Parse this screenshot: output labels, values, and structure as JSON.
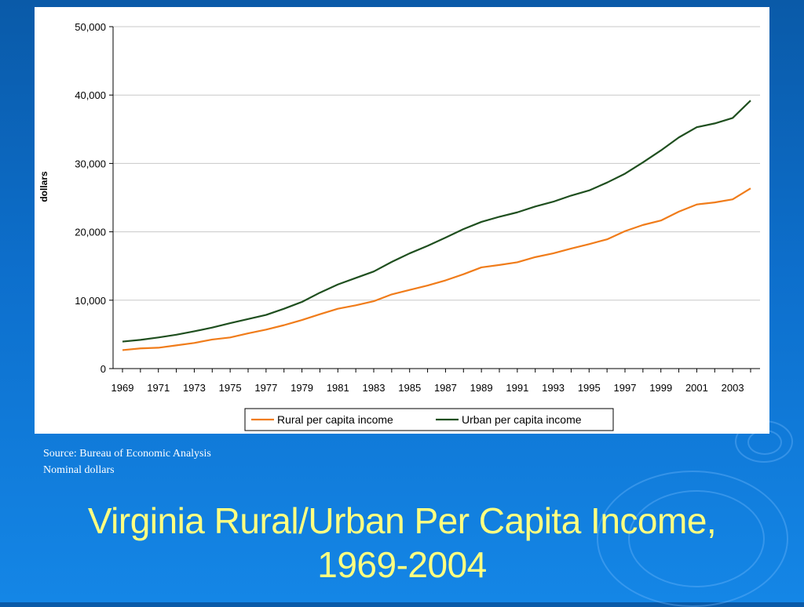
{
  "slide": {
    "title_line1": "Virginia Rural/Urban Per Capita Income,",
    "title_line2": "1969-2004",
    "source_line": "Source:  Bureau of Economic Analysis",
    "note_line": "Nominal dollars"
  },
  "colors": {
    "rural": "#f07c1a",
    "urban": "#1f4f1f",
    "title": "#ffff80",
    "background": "#0d6fcc"
  },
  "chart_data": {
    "type": "line",
    "title": "",
    "xlabel": "",
    "ylabel": "dollars",
    "x": [
      1969,
      1970,
      1971,
      1972,
      1973,
      1974,
      1975,
      1976,
      1977,
      1978,
      1979,
      1980,
      1981,
      1982,
      1983,
      1984,
      1985,
      1986,
      1987,
      1988,
      1989,
      1990,
      1991,
      1992,
      1993,
      1994,
      1995,
      1996,
      1997,
      1998,
      1999,
      2000,
      2001,
      2002,
      2003,
      2004
    ],
    "x_tick_labels": [
      "1969",
      "1971",
      "1973",
      "1975",
      "1977",
      "1979",
      "1981",
      "1983",
      "1985",
      "1987",
      "1989",
      "1991",
      "1993",
      "1995",
      "1997",
      "1999",
      "2001",
      "2003"
    ],
    "ylim": [
      0,
      50000
    ],
    "y_ticks": [
      0,
      10000,
      20000,
      30000,
      40000,
      50000
    ],
    "y_tick_labels": [
      "0",
      "10,000",
      "20,000",
      "30,000",
      "40,000",
      "50,000"
    ],
    "grid": "horizontal",
    "legend_position": "bottom",
    "series": [
      {
        "name": "Rural per capita income",
        "color_key": "rural",
        "values": [
          2700,
          2950,
          3050,
          3400,
          3750,
          4250,
          4550,
          5150,
          5700,
          6350,
          7100,
          7950,
          8750,
          9250,
          9850,
          10850,
          11500,
          12150,
          12900,
          13800,
          14800,
          15150,
          15550,
          16300,
          16850,
          17550,
          18200,
          18900,
          20100,
          21000,
          21650,
          22950,
          24000,
          24300,
          24750,
          26350
        ]
      },
      {
        "name": "Urban per capita income",
        "color_key": "urban",
        "values": [
          3950,
          4200,
          4550,
          4950,
          5450,
          6000,
          6650,
          7250,
          7850,
          8750,
          9750,
          11100,
          12300,
          13250,
          14200,
          15600,
          16850,
          17950,
          19150,
          20400,
          21450,
          22200,
          22850,
          23700,
          24400,
          25300,
          26050,
          27200,
          28500,
          30150,
          31900,
          33800,
          35300,
          35850,
          36650,
          39200
        ]
      }
    ]
  }
}
